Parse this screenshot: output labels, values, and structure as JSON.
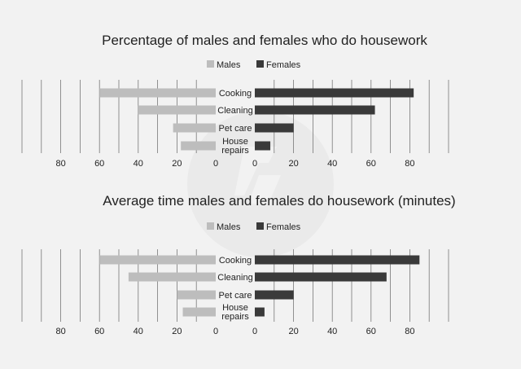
{
  "chart_data": [
    {
      "type": "bar",
      "orientation": "horizontal-butterfly",
      "title": "Percentage of males and females who do housework",
      "categories": [
        "Cooking",
        "Cleaning",
        "Pet care",
        "House repairs"
      ],
      "category_lines": [
        [
          "Cooking"
        ],
        [
          "Cleaning"
        ],
        [
          "Pet care"
        ],
        [
          "House",
          "repairs"
        ]
      ],
      "series": [
        {
          "name": "Males",
          "side": "left",
          "color": "#bdbdbd",
          "values": [
            60,
            40,
            22,
            18
          ]
        },
        {
          "name": "Females",
          "side": "right",
          "color": "#3a3a3a",
          "values": [
            82,
            62,
            20,
            8
          ]
        }
      ],
      "ticks_left": [
        "80",
        "60",
        "40",
        "20",
        "0"
      ],
      "ticks_right": [
        "0",
        "20",
        "40",
        "60",
        "80"
      ],
      "xlim": [
        0,
        100
      ],
      "grid": true,
      "legend_position": "top-center"
    },
    {
      "type": "bar",
      "orientation": "horizontal-butterfly",
      "title": "Average time males and females do housework (minutes)",
      "categories": [
        "Cooking",
        "Cleaning",
        "Pet care",
        "House repairs"
      ],
      "category_lines": [
        [
          "Cooking"
        ],
        [
          "Cleaning"
        ],
        [
          "Pet care"
        ],
        [
          "House",
          "repairs"
        ]
      ],
      "series": [
        {
          "name": "Males",
          "side": "left",
          "color": "#bdbdbd",
          "values": [
            60,
            45,
            20,
            17
          ]
        },
        {
          "name": "Females",
          "side": "right",
          "color": "#3a3a3a",
          "values": [
            85,
            68,
            20,
            5
          ]
        }
      ],
      "ticks_left": [
        "80",
        "60",
        "40",
        "20",
        "0"
      ],
      "ticks_right": [
        "0",
        "20",
        "40",
        "60",
        "80"
      ],
      "xlim": [
        0,
        100
      ],
      "grid": true,
      "legend_position": "top-center"
    }
  ]
}
